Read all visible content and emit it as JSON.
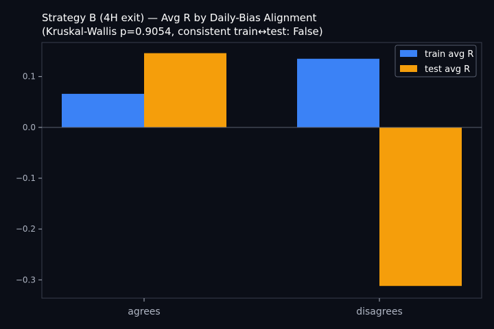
{
  "chart_data": {
    "type": "bar",
    "title": "Strategy B (4H exit) — Avg R by Daily-Bias Alignment",
    "subtitle": "(Kruskal-Wallis p=0.9054, consistent train↔test: False)",
    "categories": [
      "agrees",
      "disagrees"
    ],
    "series": [
      {
        "name": "train avg R",
        "values": [
          0.066,
          0.135
        ],
        "color": "#3b82f6"
      },
      {
        "name": "test avg R",
        "values": [
          0.146,
          -0.312
        ],
        "color": "#f59e0b"
      }
    ],
    "yticks": [
      0.1,
      0.0,
      -0.1,
      -0.2,
      -0.3
    ],
    "ytick_labels": [
      "0.1",
      "0.0",
      "−0.1",
      "−0.2",
      "−0.3"
    ],
    "ylim": [
      -0.336,
      0.167
    ],
    "xlabel": "",
    "ylabel": "",
    "grid": false,
    "legend_position": "top-right",
    "colors": {
      "background": "#0b0e17",
      "axes": "#3a3f4c",
      "zero_line": "#5a6070",
      "text": "#ffffff",
      "tick_text": "#aeb4c2"
    }
  }
}
